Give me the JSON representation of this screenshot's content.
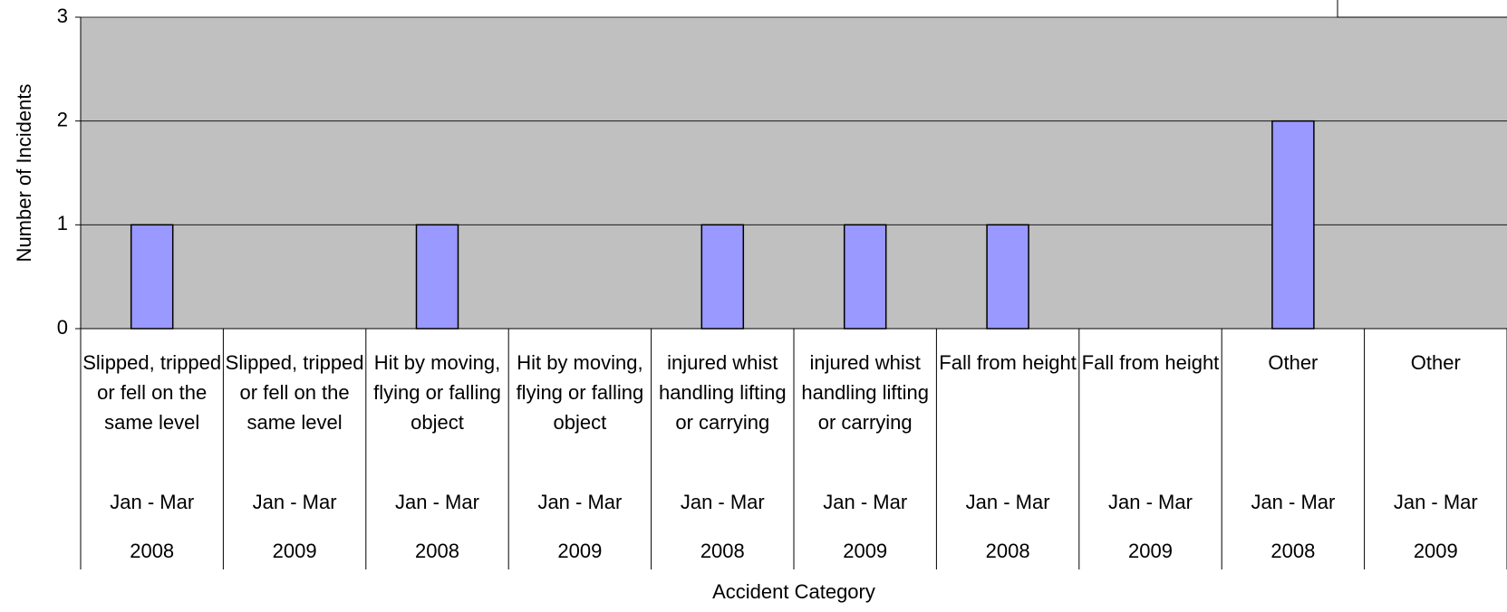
{
  "chart_data": {
    "type": "bar",
    "x_label": "Accident Category",
    "y_label": "Number of Incidents",
    "categories": [
      {
        "name": "Slipped, tripped or fell on the same level",
        "period": "Jan - Mar",
        "year": "2008"
      },
      {
        "name": "Slipped, tripped or fell on the same level",
        "period": "Jan - Mar",
        "year": "2009"
      },
      {
        "name": "Hit by moving, flying or falling object",
        "period": "Jan - Mar",
        "year": "2008"
      },
      {
        "name": "Hit by moving, flying or falling object",
        "period": "Jan - Mar",
        "year": "2009"
      },
      {
        "name": "injured whist handling lifting or carrying",
        "period": "Jan - Mar",
        "year": "2008"
      },
      {
        "name": "injured whist handling lifting or carrying",
        "period": "Jan - Mar",
        "year": "2009"
      },
      {
        "name": "Fall from height",
        "period": "Jan - Mar",
        "year": "2008"
      },
      {
        "name": "Fall from height",
        "period": "Jan - Mar",
        "year": "2009"
      },
      {
        "name": "Other",
        "period": "Jan - Mar",
        "year": "2008"
      },
      {
        "name": "Other",
        "period": "Jan - Mar",
        "year": "2009"
      }
    ],
    "values": [
      1,
      0,
      1,
      0,
      1,
      1,
      1,
      0,
      2,
      0
    ],
    "color": "#9999ff",
    "ylim": [
      0,
      3
    ],
    "yticks": [
      0,
      1,
      2,
      3
    ],
    "grid": true
  }
}
